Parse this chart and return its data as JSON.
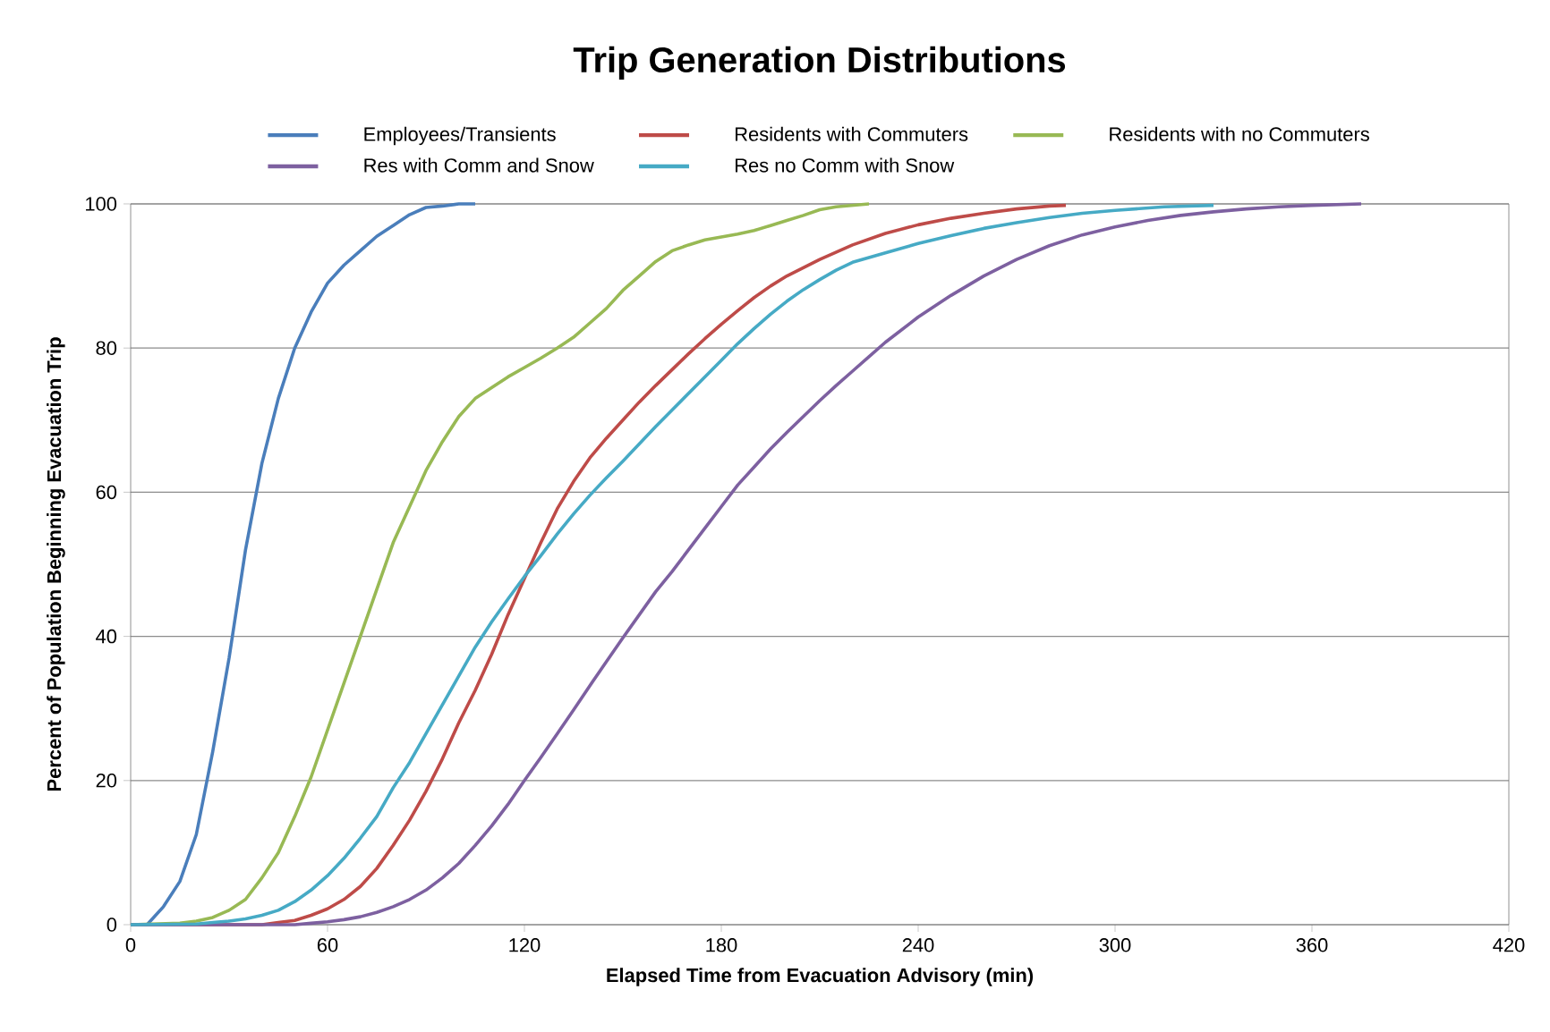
{
  "chart_data": {
    "type": "line",
    "title": "Trip Generation Distributions",
    "xlabel": "Elapsed Time from Evacuation Advisory (min)",
    "ylabel": "Percent of Population Beginning Evacuation Trip",
    "xlim": [
      0,
      420
    ],
    "xticks": [
      0,
      60,
      120,
      180,
      240,
      300,
      360,
      420
    ],
    "ylim": [
      0,
      100
    ],
    "yticks": [
      0,
      20,
      40,
      60,
      80,
      100
    ],
    "grid": "y",
    "legend": "top",
    "series": [
      {
        "name": "Employees/Transients",
        "color": "#4a7ebb",
        "x": [
          0,
          5,
          10,
          15,
          20,
          25,
          30,
          35,
          40,
          45,
          50,
          55,
          60,
          65,
          70,
          75,
          80,
          85,
          90,
          95,
          100,
          105
        ],
        "values": [
          0,
          0,
          2.5,
          6,
          12.5,
          24,
          37,
          52,
          64,
          73,
          80,
          85,
          89,
          91.5,
          93.5,
          95.5,
          97,
          98.5,
          99.5,
          99.7,
          100,
          100
        ]
      },
      {
        "name": "Residents with Commuters",
        "color": "#be4b48",
        "x": [
          0,
          40,
          45,
          50,
          55,
          60,
          65,
          70,
          75,
          80,
          85,
          90,
          95,
          100,
          105,
          110,
          115,
          120,
          125,
          130,
          135,
          140,
          145,
          150,
          155,
          160,
          165,
          170,
          175,
          180,
          185,
          190,
          195,
          200,
          210,
          220,
          230,
          240,
          250,
          260,
          270,
          280,
          285
        ],
        "values": [
          0,
          0,
          0.3,
          0.6,
          1.3,
          2.2,
          3.5,
          5.3,
          7.8,
          11,
          14.5,
          18.5,
          23,
          28,
          32.5,
          37.5,
          43,
          48,
          53,
          57.7,
          61.5,
          64.8,
          67.5,
          70,
          72.5,
          74.8,
          77,
          79.2,
          81.3,
          83.3,
          85.2,
          87,
          88.6,
          90,
          92.3,
          94.3,
          95.9,
          97.1,
          98,
          98.7,
          99.3,
          99.7,
          99.8
        ]
      },
      {
        "name": "Residents with no Commuters",
        "color": "#98b954",
        "x": [
          0,
          15,
          20,
          25,
          30,
          35,
          40,
          45,
          50,
          55,
          60,
          65,
          70,
          75,
          80,
          85,
          90,
          95,
          100,
          105,
          110,
          115,
          120,
          125,
          130,
          135,
          140,
          145,
          150,
          155,
          160,
          165,
          170,
          175,
          180,
          185,
          190,
          195,
          200,
          205,
          210,
          215,
          220,
          225
        ],
        "values": [
          0,
          0.2,
          0.5,
          1,
          2,
          3.5,
          6.5,
          10,
          15,
          20.5,
          27,
          33.5,
          40,
          46.5,
          53,
          58,
          63,
          67,
          70.5,
          73,
          74.5,
          76,
          77.3,
          78.6,
          80,
          81.5,
          83.5,
          85.5,
          88,
          90,
          92,
          93.5,
          94.3,
          95,
          95.4,
          95.8,
          96.3,
          97,
          97.7,
          98.4,
          99.2,
          99.6,
          99.8,
          100
        ]
      },
      {
        "name": "Res with Comm and Snow",
        "color": "#7d60a0",
        "x": [
          0,
          50,
          55,
          60,
          65,
          70,
          75,
          80,
          85,
          90,
          95,
          100,
          105,
          110,
          115,
          120,
          125,
          130,
          135,
          140,
          145,
          150,
          155,
          160,
          165,
          170,
          175,
          180,
          185,
          190,
          195,
          200,
          205,
          210,
          215,
          220,
          225,
          230,
          240,
          250,
          260,
          270,
          280,
          290,
          300,
          310,
          320,
          330,
          340,
          350,
          360,
          375
        ],
        "values": [
          0,
          0,
          0.2,
          0.4,
          0.7,
          1.1,
          1.7,
          2.5,
          3.5,
          4.8,
          6.5,
          8.5,
          11,
          13.7,
          16.7,
          20,
          23.2,
          26.5,
          29.8,
          33.2,
          36.5,
          39.8,
          43,
          46.2,
          49,
          52,
          55,
          58,
          61,
          63.5,
          66,
          68.3,
          70.5,
          72.7,
          74.8,
          76.8,
          78.8,
          80.8,
          84.3,
          87.3,
          90,
          92.3,
          94.2,
          95.7,
          96.8,
          97.7,
          98.4,
          98.9,
          99.3,
          99.6,
          99.8,
          100
        ]
      },
      {
        "name": "Res no Comm with Snow",
        "color": "#46aac5",
        "x": [
          0,
          20,
          25,
          30,
          35,
          40,
          45,
          50,
          55,
          60,
          65,
          70,
          75,
          80,
          85,
          90,
          95,
          100,
          105,
          110,
          115,
          120,
          125,
          130,
          135,
          140,
          145,
          150,
          155,
          160,
          165,
          170,
          175,
          180,
          185,
          190,
          195,
          200,
          205,
          210,
          215,
          220,
          230,
          240,
          250,
          260,
          270,
          280,
          290,
          300,
          315,
          330
        ],
        "values": [
          0,
          0.1,
          0.3,
          0.5,
          0.8,
          1.3,
          2,
          3.2,
          4.8,
          6.8,
          9.2,
          12,
          15,
          19,
          22.5,
          26.5,
          30.5,
          34.5,
          38.5,
          42,
          45.2,
          48.3,
          51.2,
          54.2,
          57,
          59.6,
          62,
          64.3,
          66.7,
          69.1,
          71.4,
          73.7,
          76,
          78.3,
          80.6,
          82.7,
          84.7,
          86.5,
          88.1,
          89.5,
          90.8,
          91.9,
          93.2,
          94.5,
          95.6,
          96.6,
          97.4,
          98.1,
          98.7,
          99.1,
          99.6,
          99.8
        ]
      }
    ]
  }
}
